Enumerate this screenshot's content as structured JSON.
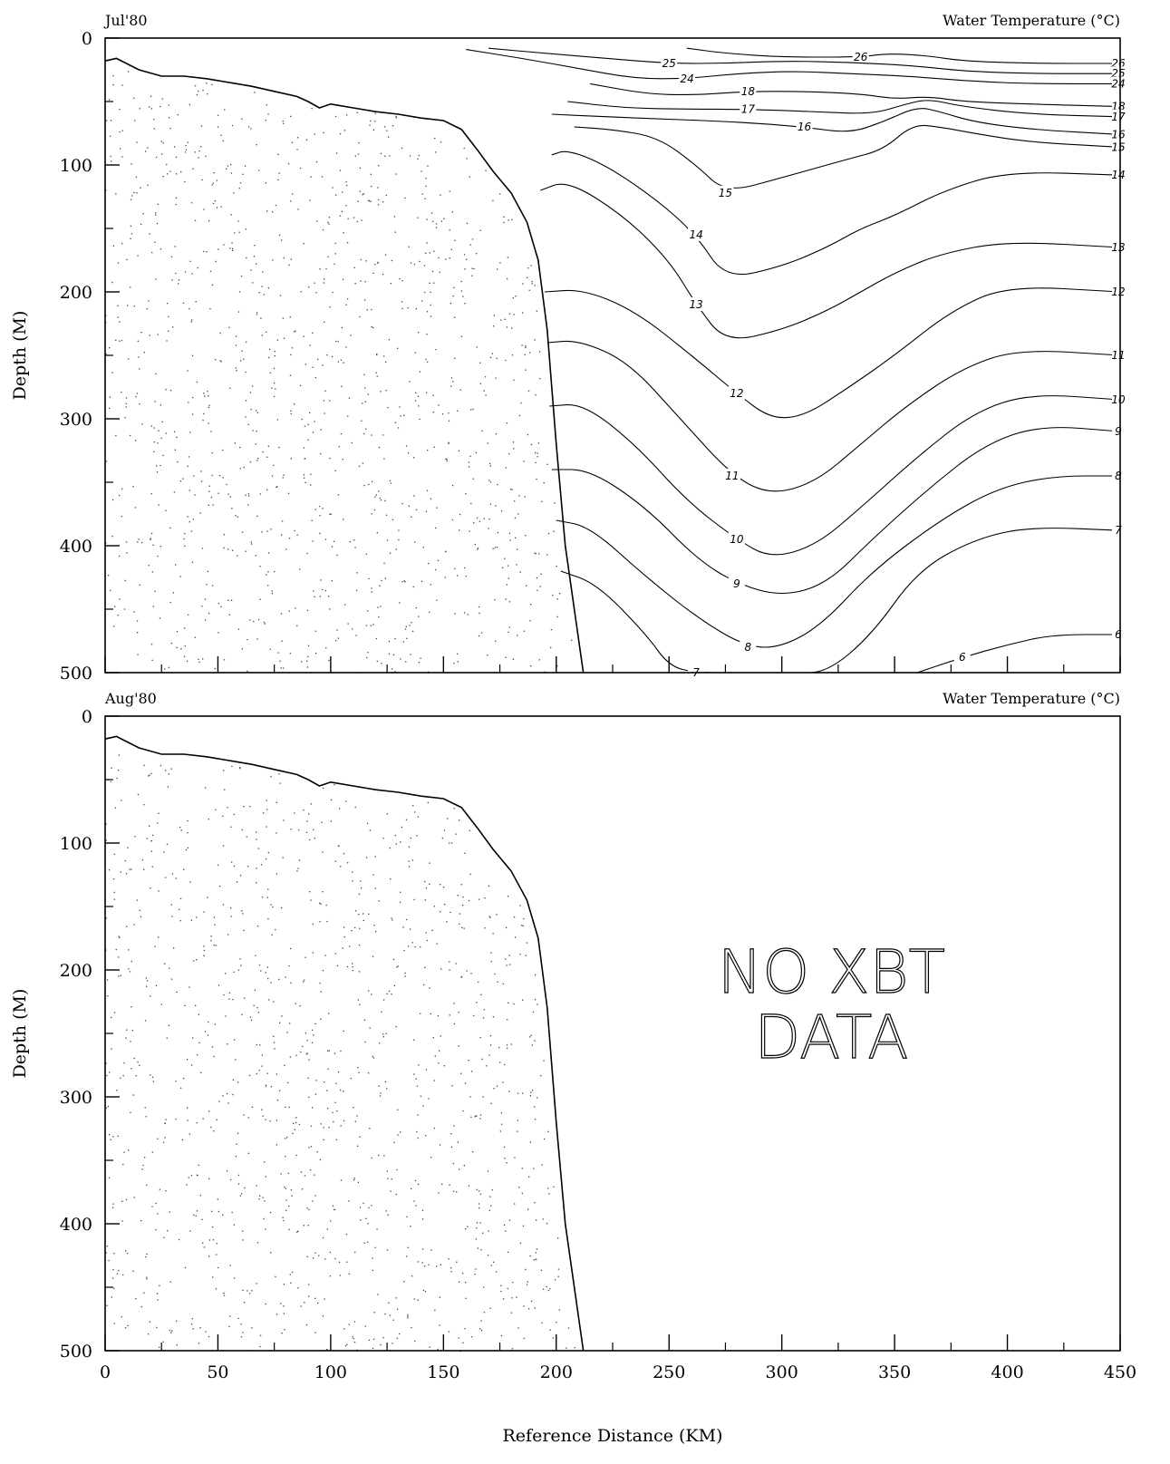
{
  "chart_data": [
    {
      "type": "contour",
      "panel_label": "Jul'80",
      "title": "Water Temperature (°C)",
      "xlabel": "",
      "ylabel": "Depth (M)",
      "xlim": [
        0,
        450
      ],
      "ylim": [
        500,
        0
      ],
      "xticks": [
        0,
        50,
        100,
        150,
        200,
        250,
        300,
        350,
        400,
        450
      ],
      "yticks": [
        0,
        100,
        200,
        300,
        400,
        500
      ],
      "bathymetry": [
        [
          0,
          18
        ],
        [
          5,
          16
        ],
        [
          15,
          25
        ],
        [
          25,
          30
        ],
        [
          35,
          30
        ],
        [
          45,
          32
        ],
        [
          55,
          35
        ],
        [
          65,
          38
        ],
        [
          75,
          42
        ],
        [
          85,
          46
        ],
        [
          90,
          50
        ],
        [
          95,
          55
        ],
        [
          100,
          52
        ],
        [
          110,
          55
        ],
        [
          120,
          58
        ],
        [
          130,
          60
        ],
        [
          140,
          63
        ],
        [
          150,
          65
        ],
        [
          158,
          72
        ],
        [
          165,
          88
        ],
        [
          172,
          105
        ],
        [
          180,
          122
        ],
        [
          187,
          145
        ],
        [
          192,
          175
        ],
        [
          196,
          230
        ],
        [
          200,
          320
        ],
        [
          204,
          400
        ],
        [
          208,
          450
        ],
        [
          212,
          500
        ]
      ],
      "contours": [
        {
          "level": 26,
          "x": [
            258,
            275,
            300,
            335,
            347,
            365,
            380,
            410,
            450
          ],
          "y": [
            8,
            12,
            15,
            15,
            12,
            14,
            18,
            20,
            20
          ]
        },
        {
          "level": 25,
          "x": [
            170,
            195,
            222,
            250,
            275,
            300,
            330,
            360,
            380,
            410,
            450
          ],
          "y": [
            8,
            12,
            16,
            20,
            20,
            18,
            19,
            22,
            26,
            28,
            28
          ]
        },
        {
          "level": 24,
          "x": [
            160,
            185,
            210,
            235,
            258,
            280,
            305,
            330,
            355,
            370,
            385,
            410,
            450
          ],
          "y": [
            9,
            16,
            24,
            32,
            32,
            28,
            26,
            28,
            30,
            32,
            34,
            36,
            36
          ]
        },
        {
          "level": 18,
          "x": [
            215,
            240,
            260,
            285,
            310,
            335,
            350,
            365,
            380,
            410,
            450
          ],
          "y": [
            36,
            44,
            45,
            42,
            42,
            44,
            48,
            46,
            50,
            52,
            54
          ]
        },
        {
          "level": 17,
          "x": [
            205,
            230,
            255,
            285,
            315,
            340,
            355,
            365,
            380,
            410,
            450
          ],
          "y": [
            50,
            55,
            56,
            56,
            58,
            60,
            52,
            48,
            54,
            60,
            62
          ]
        },
        {
          "level": 16,
          "x": [
            198,
            222,
            250,
            280,
            310,
            330,
            345,
            360,
            370,
            385,
            410,
            450
          ],
          "y": [
            60,
            62,
            64,
            66,
            70,
            75,
            66,
            54,
            58,
            66,
            72,
            76
          ]
        },
        {
          "level": 15,
          "x": [
            208,
            225,
            245,
            262,
            275,
            300,
            330,
            345,
            358,
            370,
            388,
            410,
            450
          ],
          "y": [
            70,
            72,
            78,
            100,
            122,
            110,
            95,
            88,
            68,
            70,
            76,
            82,
            86
          ]
        },
        {
          "level": 14,
          "x": [
            198,
            205,
            222,
            245,
            262,
            275,
            300,
            320,
            335,
            350,
            372,
            400,
            450
          ],
          "y": [
            92,
            88,
            100,
            128,
            155,
            190,
            180,
            165,
            150,
            140,
            120,
            105,
            108
          ]
        },
        {
          "level": 13,
          "x": [
            193,
            205,
            230,
            250,
            262,
            275,
            300,
            320,
            335,
            350,
            370,
            400,
            450
          ],
          "y": [
            120,
            112,
            140,
            175,
            210,
            240,
            230,
            215,
            200,
            185,
            170,
            160,
            165
          ]
        },
        {
          "level": 12,
          "x": [
            195,
            212,
            235,
            260,
            280,
            295,
            310,
            330,
            350,
            375,
            400,
            450
          ],
          "y": [
            200,
            198,
            215,
            250,
            280,
            300,
            298,
            275,
            250,
            215,
            195,
            200
          ]
        },
        {
          "level": 11,
          "x": [
            196,
            210,
            232,
            255,
            278,
            295,
            315,
            335,
            355,
            380,
            405,
            450
          ],
          "y": [
            240,
            238,
            255,
            300,
            345,
            360,
            350,
            320,
            290,
            260,
            245,
            250
          ]
        },
        {
          "level": 10,
          "x": [
            197,
            212,
            235,
            258,
            280,
            295,
            315,
            335,
            360,
            385,
            410,
            450
          ],
          "y": [
            290,
            288,
            320,
            365,
            395,
            410,
            400,
            370,
            330,
            295,
            280,
            285
          ]
        },
        {
          "level": 9,
          "x": [
            198,
            215,
            240,
            262,
            280,
            300,
            320,
            340,
            365,
            390,
            415,
            450
          ],
          "y": [
            340,
            340,
            370,
            410,
            430,
            440,
            430,
            395,
            355,
            320,
            305,
            310
          ]
        },
        {
          "level": 8,
          "x": [
            200,
            215,
            240,
            265,
            285,
            300,
            318,
            340,
            370,
            395,
            420,
            450
          ],
          "y": [
            380,
            385,
            425,
            460,
            480,
            480,
            462,
            420,
            380,
            355,
            345,
            345
          ]
        },
        {
          "level": 7,
          "x": [
            202,
            218,
            240,
            250,
            262,
            280,
            305,
            320,
            340,
            360,
            385,
            410,
            450
          ],
          "y": [
            420,
            430,
            470,
            495,
            500,
            500,
            500,
            500,
            470,
            420,
            395,
            385,
            388
          ]
        },
        {
          "level": 6,
          "x": [
            360,
            380,
            400,
            420,
            450
          ],
          "y": [
            500,
            488,
            478,
            470,
            470
          ]
        }
      ]
    },
    {
      "type": "contour",
      "panel_label": "Aug'80",
      "title": "Water Temperature (°C)",
      "xlabel": "Reference Distance (KM)",
      "ylabel": "Depth (M)",
      "xlim": [
        0,
        450
      ],
      "ylim": [
        500,
        0
      ],
      "xticks": [
        0,
        50,
        100,
        150,
        200,
        250,
        300,
        350,
        400,
        450
      ],
      "yticks": [
        0,
        100,
        200,
        300,
        400,
        500
      ],
      "annotation": [
        "NO XBT",
        "DATA"
      ],
      "bathymetry": [
        [
          0,
          18
        ],
        [
          5,
          16
        ],
        [
          15,
          25
        ],
        [
          25,
          30
        ],
        [
          35,
          30
        ],
        [
          45,
          32
        ],
        [
          55,
          35
        ],
        [
          65,
          38
        ],
        [
          75,
          42
        ],
        [
          85,
          46
        ],
        [
          90,
          50
        ],
        [
          95,
          55
        ],
        [
          100,
          52
        ],
        [
          110,
          55
        ],
        [
          120,
          58
        ],
        [
          130,
          60
        ],
        [
          140,
          63
        ],
        [
          150,
          65
        ],
        [
          158,
          72
        ],
        [
          165,
          88
        ],
        [
          172,
          105
        ],
        [
          180,
          122
        ],
        [
          187,
          145
        ],
        [
          192,
          175
        ],
        [
          196,
          230
        ],
        [
          200,
          320
        ],
        [
          204,
          400
        ],
        [
          208,
          450
        ],
        [
          212,
          500
        ]
      ],
      "contours": []
    }
  ]
}
